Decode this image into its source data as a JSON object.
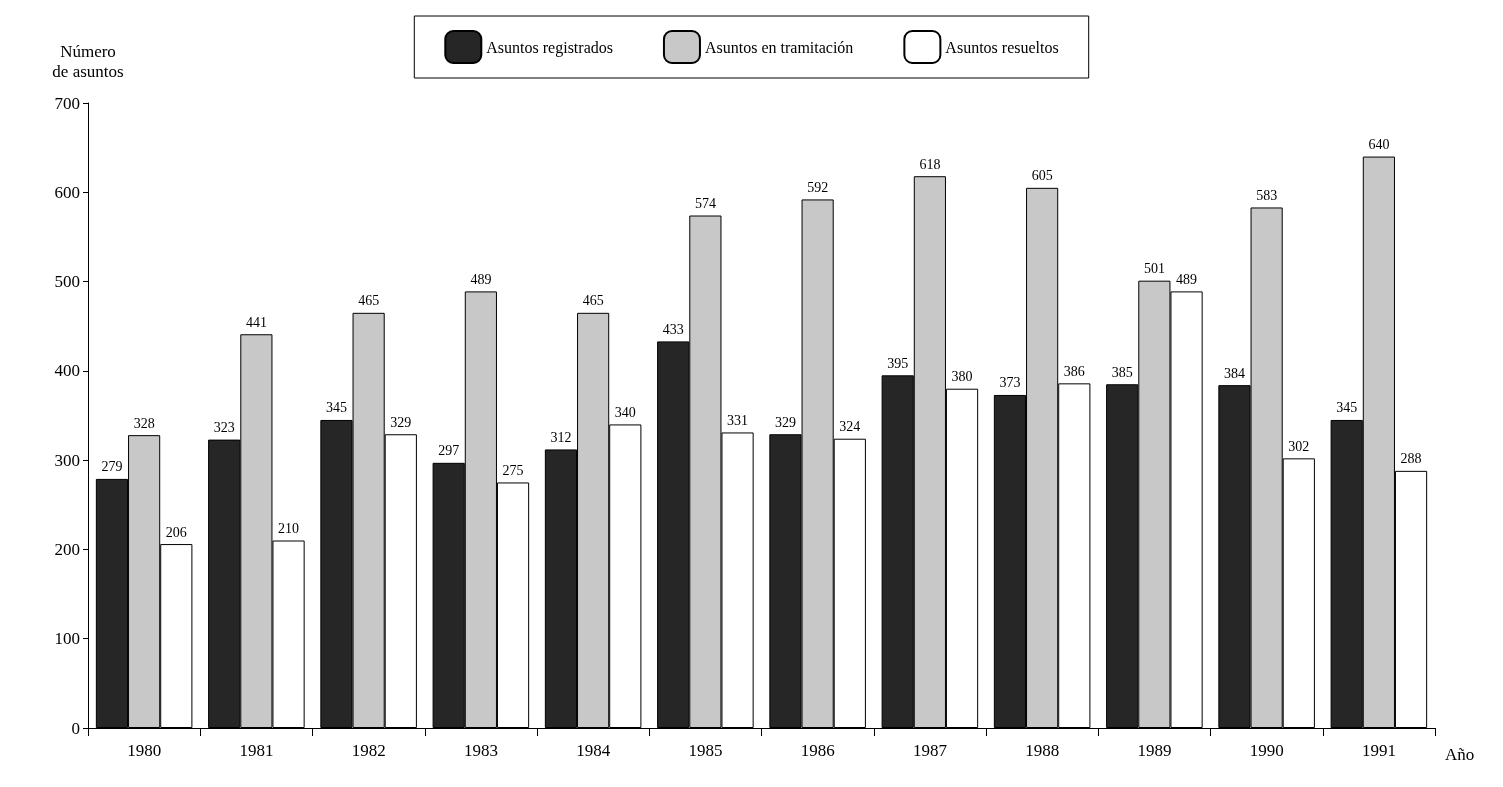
{
  "chart_data": {
    "type": "bar",
    "xlabel": "Año",
    "ylabel": "Número\nde asuntos",
    "categories": [
      "1980",
      "1981",
      "1982",
      "1983",
      "1984",
      "1985",
      "1986",
      "1987",
      "1988",
      "1989",
      "1990",
      "1991"
    ],
    "series": [
      {
        "name": "Asuntos registrados",
        "color": "#262626",
        "values": [
          279,
          323,
          345,
          297,
          312,
          433,
          329,
          395,
          373,
          385,
          384,
          345
        ]
      },
      {
        "name": "Asuntos en tramitación",
        "color": "#c8c8c8",
        "values": [
          328,
          441,
          465,
          489,
          465,
          574,
          592,
          618,
          605,
          501,
          583,
          640
        ]
      },
      {
        "name": "Asuntos resueltos",
        "color": "#ffffff",
        "values": [
          206,
          210,
          329,
          275,
          340,
          331,
          324,
          380,
          386,
          489,
          302,
          288
        ]
      }
    ],
    "ylim": [
      0,
      700
    ],
    "yticks": [
      0,
      100,
      200,
      300,
      400,
      500,
      600,
      700
    ],
    "grid": false,
    "legend": "top",
    "data_labels": true
  }
}
